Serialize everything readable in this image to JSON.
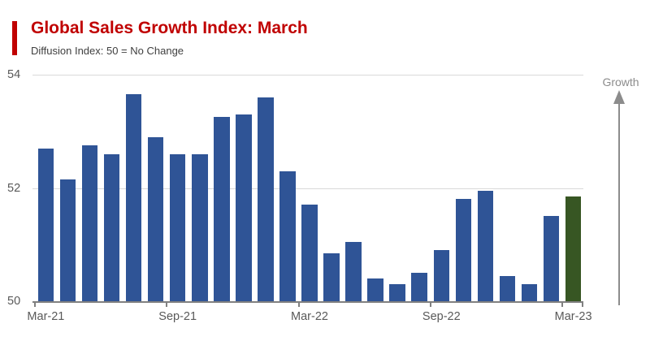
{
  "header": {
    "title": "Global Sales Growth Index: March",
    "subtitle": "Diffusion Index: 50 = No Change",
    "accent_color": "#c00000"
  },
  "chart_data": {
    "type": "bar",
    "title": "Global Sales Growth Index: March",
    "subtitle": "Diffusion Index: 50 = No Change",
    "categories": [
      "Mar-21",
      "Apr-21",
      "May-21",
      "Jun-21",
      "Jul-21",
      "Aug-21",
      "Sep-21",
      "Oct-21",
      "Nov-21",
      "Dec-21",
      "Jan-22",
      "Feb-22",
      "Mar-22",
      "Apr-22",
      "May-22",
      "Jun-22",
      "Jul-22",
      "Aug-22",
      "Sep-22",
      "Oct-22",
      "Nov-22",
      "Dec-22",
      "Jan-23",
      "Feb-23",
      "Mar-23"
    ],
    "values": [
      52.7,
      52.15,
      52.75,
      52.6,
      53.65,
      52.9,
      52.6,
      52.6,
      53.25,
      53.3,
      53.6,
      52.3,
      51.7,
      50.85,
      51.05,
      50.4,
      50.3,
      50.5,
      50.9,
      51.8,
      51.95,
      50.45,
      50.3,
      51.5,
      51.85
    ],
    "ylim": [
      50,
      54
    ],
    "y_ticks": [
      54,
      52,
      50
    ],
    "x_axis_tick_labels": [
      {
        "label": "Mar-21",
        "index": 0
      },
      {
        "label": "Sep-21",
        "index": 6
      },
      {
        "label": "Mar-22",
        "index": 12
      },
      {
        "label": "Sep-22",
        "index": 18
      },
      {
        "label": "Mar-23",
        "index": 24
      }
    ],
    "grid": "horizontal gridlines at 52 and 54, legend none",
    "bar_color": "#2f5496",
    "highlight_color": "#375623",
    "highlight_index": 24,
    "annotation": {
      "label": "Growth",
      "direction": "up"
    }
  }
}
